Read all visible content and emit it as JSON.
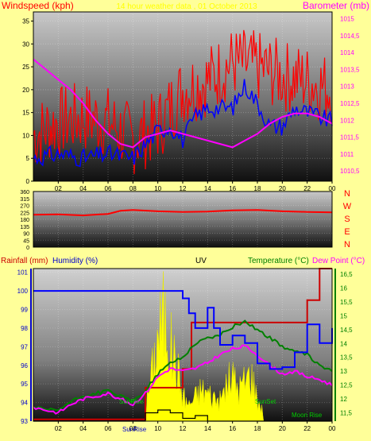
{
  "chart_data": [
    {
      "type": "line",
      "left_label": "Windspeed (kph)",
      "right_label": "Barometer (mb)",
      "title": "14 hour weather data , 01 October 2013",
      "x_ticks": [
        "02",
        "04",
        "06",
        "08",
        "10",
        "12",
        "14",
        "16",
        "18",
        "20",
        "22",
        "00"
      ],
      "y_left_ticks": [
        "0",
        "5",
        "10",
        "15",
        "20",
        "25",
        "30",
        "35"
      ],
      "ylim_left": [
        0,
        37
      ],
      "y_right_ticks": [
        "1010,5",
        "1011",
        "1011,5",
        "1012",
        "1012,5",
        "1013",
        "1013,5",
        "1014",
        "1014,5",
        "1015"
      ],
      "ylim_right": [
        1010.2,
        1015.2
      ],
      "series": [
        {
          "color": "#ff0000",
          "kind": "gust",
          "x": [
            0,
            2,
            4,
            6,
            8,
            10,
            12,
            14,
            16,
            18,
            20,
            22,
            24
          ],
          "values": [
            10,
            13,
            14,
            13,
            9,
            12,
            20,
            22,
            26,
            25,
            23,
            22,
            20
          ]
        },
        {
          "color": "#0000ff",
          "kind": "average",
          "x": [
            0,
            2,
            4,
            6,
            8,
            10,
            11,
            12,
            13,
            14,
            16,
            17,
            18,
            19,
            20,
            21,
            22,
            23,
            24
          ],
          "values": [
            5,
            6,
            5,
            6,
            5,
            11,
            12,
            9,
            14,
            16,
            16,
            21,
            17,
            12,
            12,
            16,
            15,
            14,
            13
          ]
        },
        {
          "color": "#ff00ff",
          "kind": "barometer",
          "x": [
            0,
            1,
            2,
            3,
            4,
            5,
            6,
            7,
            8,
            9,
            10,
            11,
            12,
            13,
            14,
            15,
            16,
            17,
            18,
            19,
            20,
            21,
            22,
            23,
            24
          ],
          "values": [
            1013.8,
            1013.5,
            1013.2,
            1012.9,
            1012.5,
            1012.0,
            1011.6,
            1011.3,
            1011.2,
            1011.5,
            1011.6,
            1011.7,
            1011.6,
            1011.5,
            1011.4,
            1011.3,
            1011.2,
            1011.4,
            1011.6,
            1011.9,
            1012.1,
            1012.2,
            1012.2,
            1012.1,
            1011.9
          ]
        }
      ]
    },
    {
      "type": "line",
      "y_ticks": [
        "360",
        "315",
        "270",
        "225",
        "180",
        "135",
        "90",
        "45",
        "0"
      ],
      "ylim": [
        0,
        360
      ],
      "compass_labels": [
        "N",
        "W",
        "S",
        "E",
        "N"
      ],
      "series": [
        {
          "color": "#ff0000",
          "kind": "direction",
          "x": [
            0,
            2,
            4,
            6,
            7,
            8,
            10,
            12,
            14,
            16,
            18,
            20,
            22,
            24
          ],
          "values": [
            210,
            212,
            205,
            215,
            235,
            240,
            232,
            228,
            230,
            238,
            240,
            232,
            228,
            225
          ]
        }
      ]
    },
    {
      "type": "line",
      "labels": {
        "rainfall": "Rainfall (mm)",
        "humidity": "Humidity (%)",
        "uv": "UV",
        "temperature": "Temperature (°C)",
        "dewpoint": "Dew Point (°C)"
      },
      "y_left_ticks": [
        "93",
        "94",
        "95",
        "96",
        "97",
        "98",
        "99",
        "100",
        "101"
      ],
      "ylim_left": [
        93,
        101.2
      ],
      "y_right_ticks": [
        "11,5",
        "12",
        "12,5",
        "13",
        "13,5",
        "14",
        "14,5",
        "15",
        "15,5",
        "16",
        "16,5"
      ],
      "ylim_right": [
        11.2,
        16.7
      ],
      "annotations": [
        "SunRise",
        "SunSet",
        "Moon Rise",
        "SunRise"
      ],
      "series": [
        {
          "color": "#ffff00",
          "kind": "uv",
          "x": [
            9,
            9.5,
            10,
            10.5,
            11,
            11.5,
            12,
            12.5,
            13,
            13.5,
            14,
            15,
            15.5,
            16,
            16.5,
            17,
            17.5,
            18,
            18.5
          ],
          "values": [
            11.8,
            13.5,
            15.5,
            16.5,
            15.0,
            14.0,
            12.5,
            12.0,
            12.4,
            12.8,
            12.6,
            12.2,
            13.0,
            13.4,
            12.8,
            13.2,
            13.6,
            12.3,
            11.6
          ]
        },
        {
          "color": "#0000ff",
          "kind": "humidity",
          "x": [
            0,
            2,
            4,
            6,
            8,
            10,
            12,
            12.5,
            13,
            14,
            14.5,
            15,
            16,
            17,
            18,
            19,
            20,
            21,
            22,
            23,
            24
          ],
          "values": [
            100,
            100,
            100,
            100,
            100,
            100,
            99.6,
            98.8,
            98.0,
            99.1,
            98.0,
            97.1,
            97.6,
            97.2,
            96.1,
            95.8,
            95.9,
            96.7,
            98.2,
            97.2,
            98.0
          ]
        },
        {
          "color": "#cc0000",
          "kind": "rainfall",
          "x": [
            0,
            9,
            9,
            12,
            12,
            12.7,
            12.7,
            22,
            22,
            23,
            23,
            24
          ],
          "values": [
            93.1,
            93.1,
            94.8,
            94.8,
            95.8,
            95.8,
            98.3,
            98.3,
            99.5,
            99.5,
            101.2,
            101.2
          ]
        },
        {
          "color": "#008000",
          "kind": "temperature",
          "x": [
            0,
            1,
            2,
            3,
            4,
            5,
            6,
            7,
            8,
            9,
            10,
            11,
            12,
            13,
            14,
            15,
            16,
            17,
            18,
            19,
            20,
            21,
            22,
            23,
            24
          ],
          "values": [
            11.7,
            11.6,
            11.6,
            11.9,
            12.1,
            12.2,
            12.3,
            12.1,
            11.9,
            12.3,
            12.9,
            13.3,
            13.5,
            14.0,
            14.2,
            14.3,
            14.6,
            14.8,
            14.5,
            14.2,
            13.9,
            13.7,
            13.6,
            13.2,
            13.0
          ]
        },
        {
          "color": "#ff00ff",
          "kind": "dewpoint",
          "x": [
            0,
            1,
            2,
            3,
            4,
            5,
            6,
            7,
            8,
            9,
            10,
            11,
            12,
            13,
            14,
            15,
            16,
            17,
            18,
            19,
            20,
            21,
            22,
            23,
            24
          ],
          "values": [
            11.7,
            11.6,
            11.5,
            11.8,
            12.0,
            12.1,
            12.2,
            12.0,
            11.8,
            12.2,
            12.8,
            13.1,
            13.0,
            13.1,
            13.3,
            13.6,
            13.8,
            13.9,
            13.6,
            13.2,
            12.9,
            13.0,
            12.8,
            12.7,
            12.5
          ]
        },
        {
          "color": "#000000",
          "kind": "solar",
          "x": [
            0,
            9,
            9,
            10,
            10,
            11,
            11,
            12,
            12,
            13,
            13,
            14,
            14,
            24
          ],
          "values": [
            11.2,
            11.2,
            11.5,
            11.5,
            11.6,
            11.6,
            11.5,
            11.5,
            11.3,
            11.3,
            11.4,
            11.4,
            11.2,
            11.2
          ]
        }
      ]
    }
  ]
}
